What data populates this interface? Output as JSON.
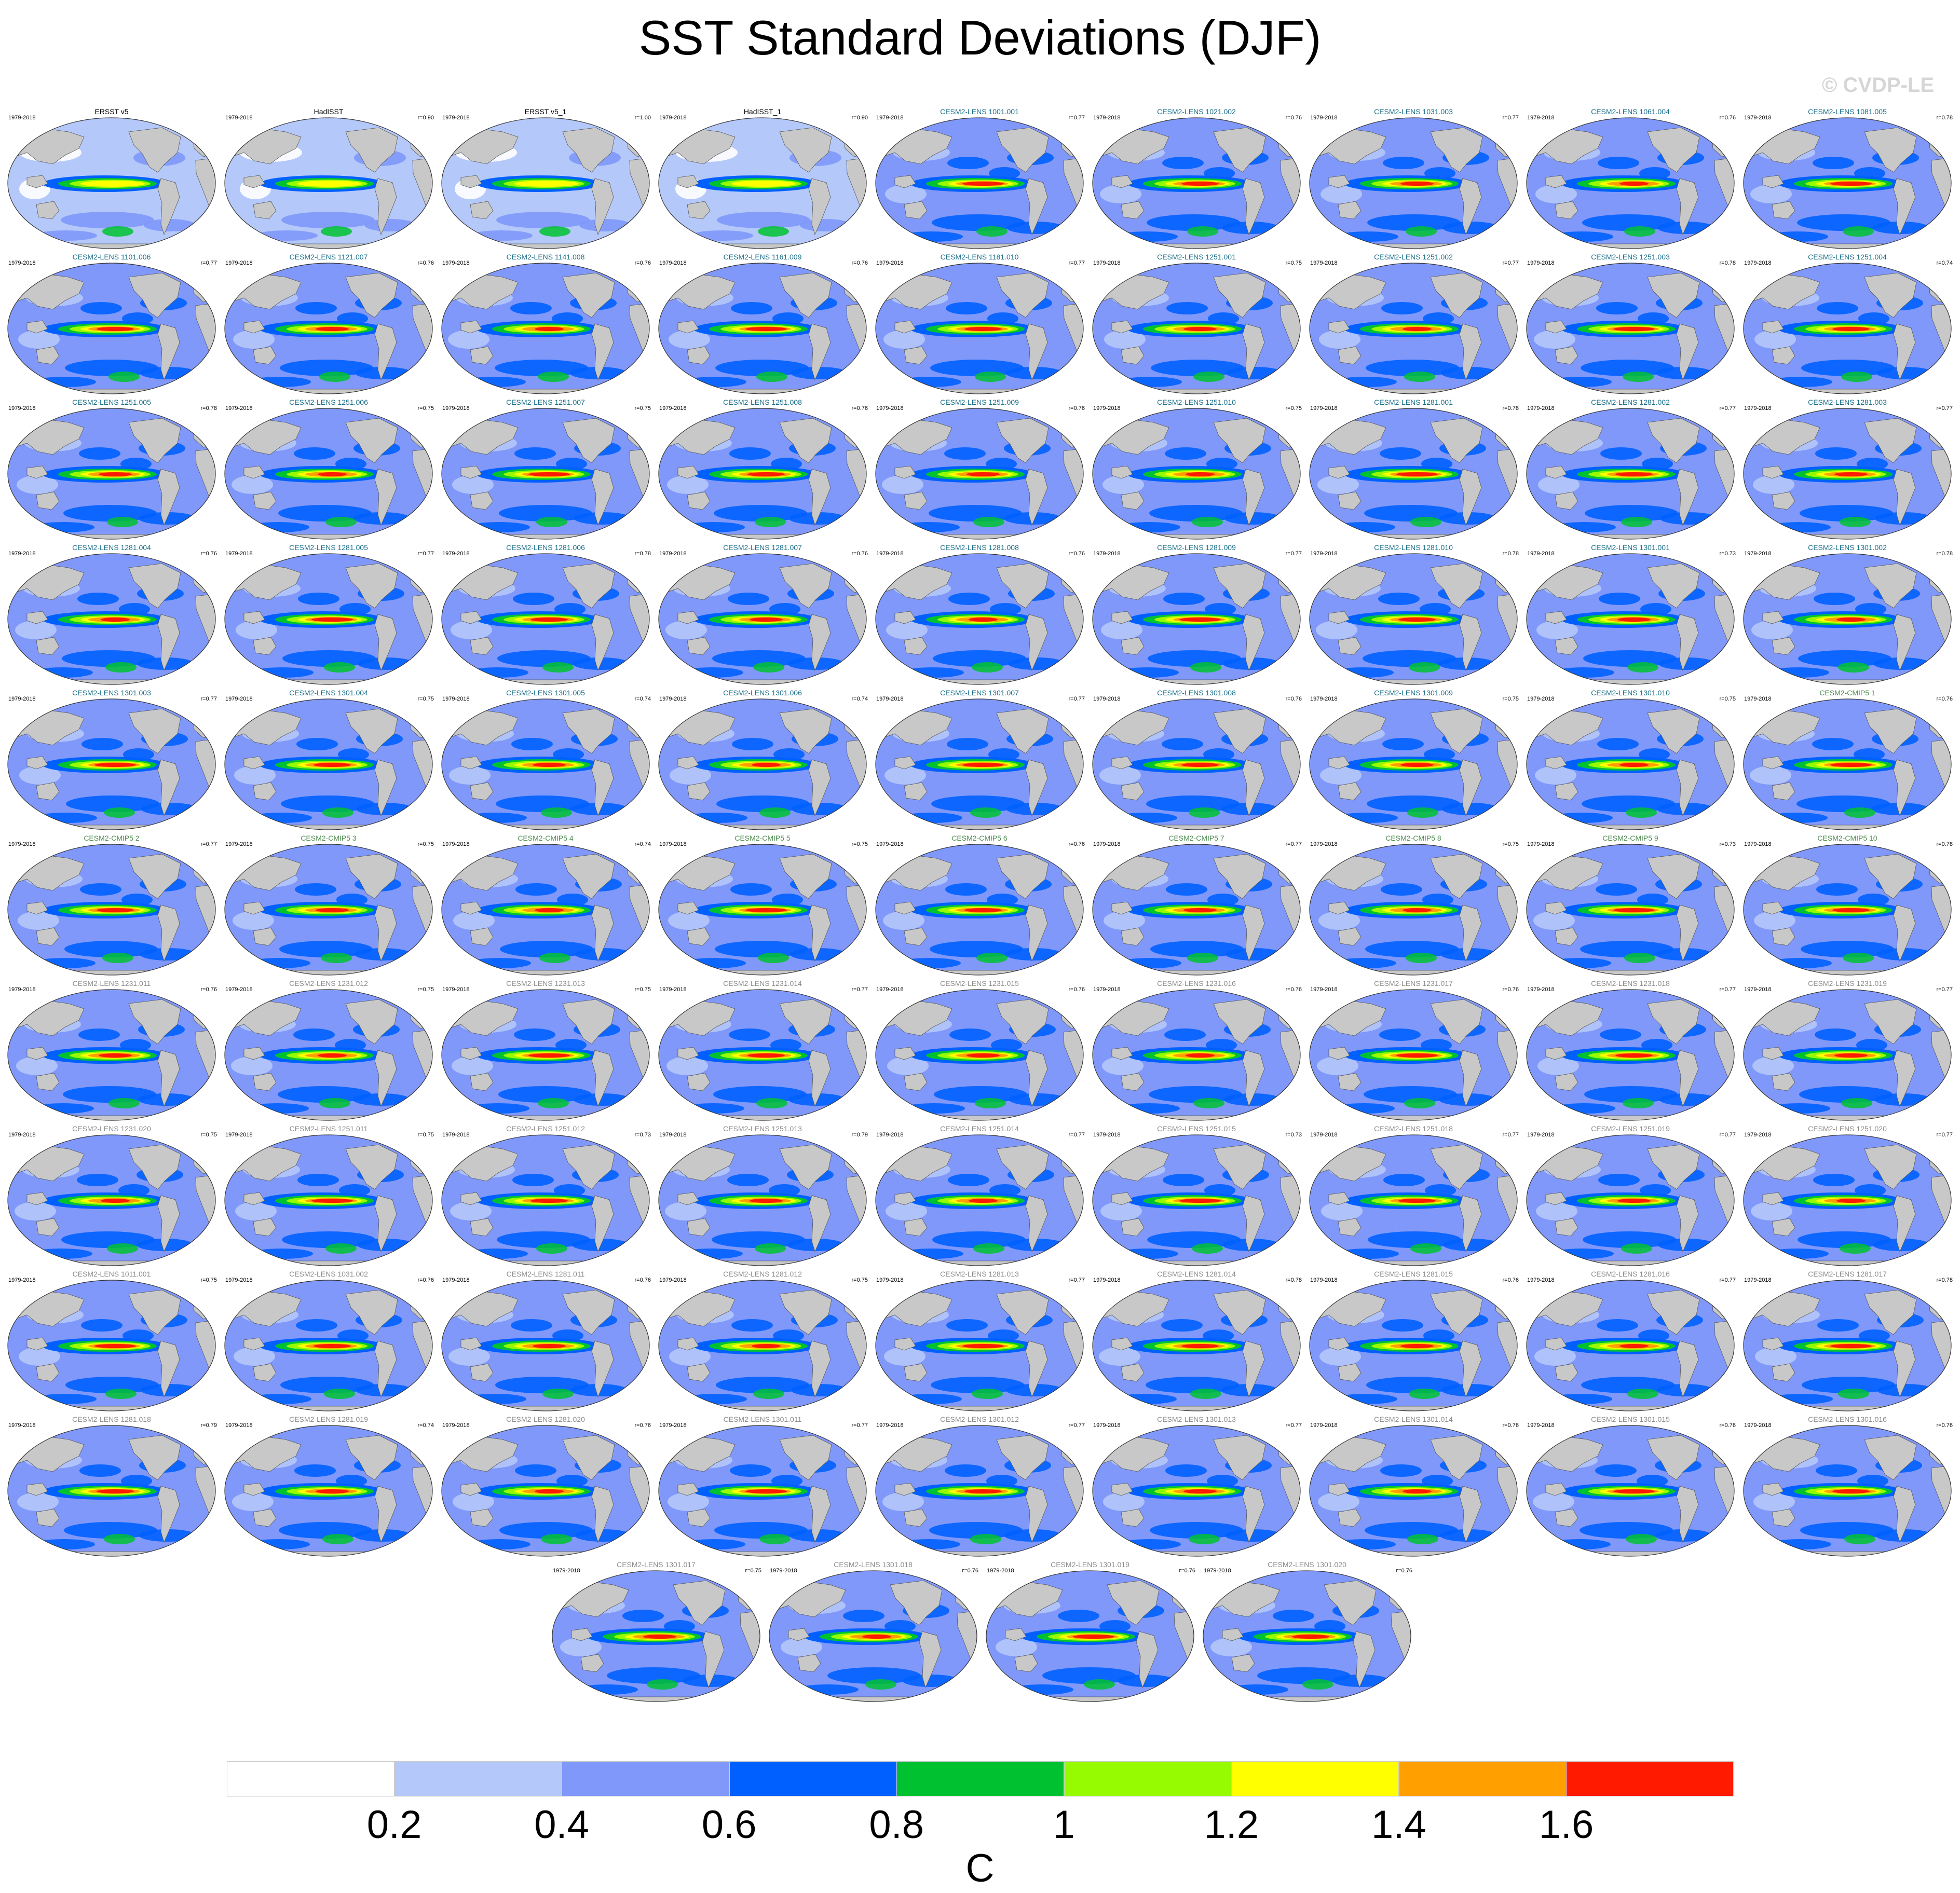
{
  "title": "SST Standard Deviations (DJF)",
  "watermark": "© CVDP-LE",
  "period": "1979-2018",
  "panels": [
    {
      "name": "ERSST v5",
      "r": "",
      "group": "obs"
    },
    {
      "name": "HadISST",
      "r": "r=0.90",
      "group": "obs"
    },
    {
      "name": "ERSST v5_1",
      "r": "r=1.00",
      "group": "obs"
    },
    {
      "name": "HadISST_1",
      "r": "r=0.90",
      "group": "obs"
    },
    {
      "name": "CESM2-LENS 1001.001",
      "r": "r=0.77",
      "group": "lens"
    },
    {
      "name": "CESM2-LENS 1021.002",
      "r": "r=0.76",
      "group": "lens"
    },
    {
      "name": "CESM2-LENS 1031.003",
      "r": "r=0.77",
      "group": "lens"
    },
    {
      "name": "CESM2-LENS 1061.004",
      "r": "r=0.76",
      "group": "lens"
    },
    {
      "name": "CESM2-LENS 1081.005",
      "r": "r=0.78",
      "group": "lens"
    },
    {
      "name": "CESM2-LENS 1101.006",
      "r": "r=0.77",
      "group": "lens"
    },
    {
      "name": "CESM2-LENS 1121.007",
      "r": "r=0.76",
      "group": "lens"
    },
    {
      "name": "CESM2-LENS 1141.008",
      "r": "r=0.76",
      "group": "lens"
    },
    {
      "name": "CESM2-LENS 1161.009",
      "r": "r=0.76",
      "group": "lens"
    },
    {
      "name": "CESM2-LENS 1181.010",
      "r": "r=0.77",
      "group": "lens"
    },
    {
      "name": "CESM2-LENS 1251.001",
      "r": "r=0.75",
      "group": "lens"
    },
    {
      "name": "CESM2-LENS 1251.002",
      "r": "r=0.77",
      "group": "lens"
    },
    {
      "name": "CESM2-LENS 1251.003",
      "r": "r=0.78",
      "group": "lens"
    },
    {
      "name": "CESM2-LENS 1251.004",
      "r": "r=0.74",
      "group": "lens"
    },
    {
      "name": "CESM2-LENS 1251.005",
      "r": "r=0.78",
      "group": "lens"
    },
    {
      "name": "CESM2-LENS 1251.006",
      "r": "r=0.75",
      "group": "lens"
    },
    {
      "name": "CESM2-LENS 1251.007",
      "r": "r=0.75",
      "group": "lens"
    },
    {
      "name": "CESM2-LENS 1251.008",
      "r": "r=0.76",
      "group": "lens"
    },
    {
      "name": "CESM2-LENS 1251.009",
      "r": "r=0.76",
      "group": "lens"
    },
    {
      "name": "CESM2-LENS 1251.010",
      "r": "r=0.75",
      "group": "lens"
    },
    {
      "name": "CESM2-LENS 1281.001",
      "r": "r=0.78",
      "group": "lens"
    },
    {
      "name": "CESM2-LENS 1281.002",
      "r": "r=0.77",
      "group": "lens"
    },
    {
      "name": "CESM2-LENS 1281.003",
      "r": "r=0.77",
      "group": "lens"
    },
    {
      "name": "CESM2-LENS 1281.004",
      "r": "r=0.76",
      "group": "lens"
    },
    {
      "name": "CESM2-LENS 1281.005",
      "r": "r=0.77",
      "group": "lens"
    },
    {
      "name": "CESM2-LENS 1281.006",
      "r": "r=0.78",
      "group": "lens"
    },
    {
      "name": "CESM2-LENS 1281.007",
      "r": "r=0.76",
      "group": "lens"
    },
    {
      "name": "CESM2-LENS 1281.008",
      "r": "r=0.76",
      "group": "lens"
    },
    {
      "name": "CESM2-LENS 1281.009",
      "r": "r=0.77",
      "group": "lens"
    },
    {
      "name": "CESM2-LENS 1281.010",
      "r": "r=0.78",
      "group": "lens"
    },
    {
      "name": "CESM2-LENS 1301.001",
      "r": "r=0.73",
      "group": "lens"
    },
    {
      "name": "CESM2-LENS 1301.002",
      "r": "r=0.78",
      "group": "lens"
    },
    {
      "name": "CESM2-LENS 1301.003",
      "r": "r=0.77",
      "group": "lens"
    },
    {
      "name": "CESM2-LENS 1301.004",
      "r": "r=0.75",
      "group": "lens"
    },
    {
      "name": "CESM2-LENS 1301.005",
      "r": "r=0.74",
      "group": "lens"
    },
    {
      "name": "CESM2-LENS 1301.006",
      "r": "r=0.74",
      "group": "lens"
    },
    {
      "name": "CESM2-LENS 1301.007",
      "r": "r=0.77",
      "group": "lens"
    },
    {
      "name": "CESM2-LENS 1301.008",
      "r": "r=0.76",
      "group": "lens"
    },
    {
      "name": "CESM2-LENS 1301.009",
      "r": "r=0.75",
      "group": "lens"
    },
    {
      "name": "CESM2-LENS 1301.010",
      "r": "r=0.75",
      "group": "lens"
    },
    {
      "name": "CESM2-CMIP5 1",
      "r": "r=0.76",
      "group": "cmip"
    },
    {
      "name": "CESM2-CMIP5 2",
      "r": "r=0.77",
      "group": "cmip"
    },
    {
      "name": "CESM2-CMIP5 3",
      "r": "r=0.75",
      "group": "cmip"
    },
    {
      "name": "CESM2-CMIP5 4",
      "r": "r=0.74",
      "group": "cmip"
    },
    {
      "name": "CESM2-CMIP5 5",
      "r": "r=0.75",
      "group": "cmip"
    },
    {
      "name": "CESM2-CMIP5 6",
      "r": "r=0.76",
      "group": "cmip"
    },
    {
      "name": "CESM2-CMIP5 7",
      "r": "r=0.77",
      "group": "cmip"
    },
    {
      "name": "CESM2-CMIP5 8",
      "r": "r=0.75",
      "group": "cmip"
    },
    {
      "name": "CESM2-CMIP5 9",
      "r": "r=0.73",
      "group": "cmip"
    },
    {
      "name": "CESM2-CMIP5 10",
      "r": "r=0.78",
      "group": "cmip"
    },
    {
      "name": "CESM2-LENS 1231.011",
      "r": "r=0.76",
      "group": "grey"
    },
    {
      "name": "CESM2-LENS 1231.012",
      "r": "r=0.75",
      "group": "grey"
    },
    {
      "name": "CESM2-LENS 1231.013",
      "r": "r=0.75",
      "group": "grey"
    },
    {
      "name": "CESM2-LENS 1231.014",
      "r": "r=0.77",
      "group": "grey"
    },
    {
      "name": "CESM2-LENS 1231.015",
      "r": "r=0.76",
      "group": "grey"
    },
    {
      "name": "CESM2-LENS 1231.016",
      "r": "r=0.76",
      "group": "grey"
    },
    {
      "name": "CESM2-LENS 1231.017",
      "r": "r=0.76",
      "group": "grey"
    },
    {
      "name": "CESM2-LENS 1231.018",
      "r": "r=0.77",
      "group": "grey"
    },
    {
      "name": "CESM2-LENS 1231.019",
      "r": "r=0.77",
      "group": "grey"
    },
    {
      "name": "CESM2-LENS 1231.020",
      "r": "r=0.75",
      "group": "grey"
    },
    {
      "name": "CESM2-LENS 1251.011",
      "r": "r=0.75",
      "group": "grey"
    },
    {
      "name": "CESM2-LENS 1251.012",
      "r": "r=0.73",
      "group": "grey"
    },
    {
      "name": "CESM2-LENS 1251.013",
      "r": "r=0.79",
      "group": "grey"
    },
    {
      "name": "CESM2-LENS 1251.014",
      "r": "r=0.77",
      "group": "grey"
    },
    {
      "name": "CESM2-LENS 1251.015",
      "r": "r=0.73",
      "group": "grey"
    },
    {
      "name": "CESM2-LENS 1251.018",
      "r": "r=0.77",
      "group": "grey"
    },
    {
      "name": "CESM2-LENS 1251.019",
      "r": "r=0.77",
      "group": "grey"
    },
    {
      "name": "CESM2-LENS 1251.020",
      "r": "r=0.77",
      "group": "grey"
    },
    {
      "name": "CESM2-LENS 1011.001",
      "r": "r=0.75",
      "group": "grey"
    },
    {
      "name": "CESM2-LENS 1031.002",
      "r": "r=0.76",
      "group": "grey"
    },
    {
      "name": "CESM2-LENS 1281.011",
      "r": "r=0.76",
      "group": "grey"
    },
    {
      "name": "CESM2-LENS 1281.012",
      "r": "r=0.75",
      "group": "grey"
    },
    {
      "name": "CESM2-LENS 1281.013",
      "r": "r=0.77",
      "group": "grey"
    },
    {
      "name": "CESM2-LENS 1281.014",
      "r": "r=0.78",
      "group": "grey"
    },
    {
      "name": "CESM2-LENS 1281.015",
      "r": "r=0.76",
      "group": "grey"
    },
    {
      "name": "CESM2-LENS 1281.016",
      "r": "r=0.77",
      "group": "grey"
    },
    {
      "name": "CESM2-LENS 1281.017",
      "r": "r=0.78",
      "group": "grey"
    },
    {
      "name": "CESM2-LENS 1281.018",
      "r": "r=0.79",
      "group": "grey"
    },
    {
      "name": "CESM2-LENS 1281.019",
      "r": "r=0.74",
      "group": "grey"
    },
    {
      "name": "CESM2-LENS 1281.020",
      "r": "r=0.76",
      "group": "grey"
    },
    {
      "name": "CESM2-LENS 1301.011",
      "r": "r=0.77",
      "group": "grey"
    },
    {
      "name": "CESM2-LENS 1301.012",
      "r": "r=0.77",
      "group": "grey"
    },
    {
      "name": "CESM2-LENS 1301.013",
      "r": "r=0.77",
      "group": "grey"
    },
    {
      "name": "CESM2-LENS 1301.014",
      "r": "r=0.76",
      "group": "grey"
    },
    {
      "name": "CESM2-LENS 1301.015",
      "r": "r=0.76",
      "group": "grey"
    },
    {
      "name": "CESM2-LENS 1301.016",
      "r": "r=0.76",
      "group": "grey"
    },
    {
      "name": "CESM2-LENS 1301.017",
      "r": "r=0.75",
      "group": "grey"
    },
    {
      "name": "CESM2-LENS 1301.018",
      "r": "r=0.76",
      "group": "grey"
    },
    {
      "name": "CESM2-LENS 1301.019",
      "r": "r=0.76",
      "group": "grey"
    },
    {
      "name": "CESM2-LENS 1301.020",
      "r": "r=0.76",
      "group": "grey"
    }
  ],
  "colorbar": {
    "units": "C",
    "tick_labels": [
      "0.2",
      "0.4",
      "0.6",
      "0.8",
      "1",
      "1.2",
      "1.4",
      "1.6"
    ],
    "colors": [
      "#ffffff",
      "#b4c8fa",
      "#8098fa",
      "#0060ff",
      "#00c230",
      "#96fa00",
      "#ffff00",
      "#ffa000",
      "#ff1a00"
    ]
  },
  "colors": {
    "land": "#c8c8c8",
    "obs_title": "#000000",
    "lens_title": "#1a6f8a",
    "cmip_title": "#4f8c4f",
    "grey_title": "#8c8c8c"
  }
}
